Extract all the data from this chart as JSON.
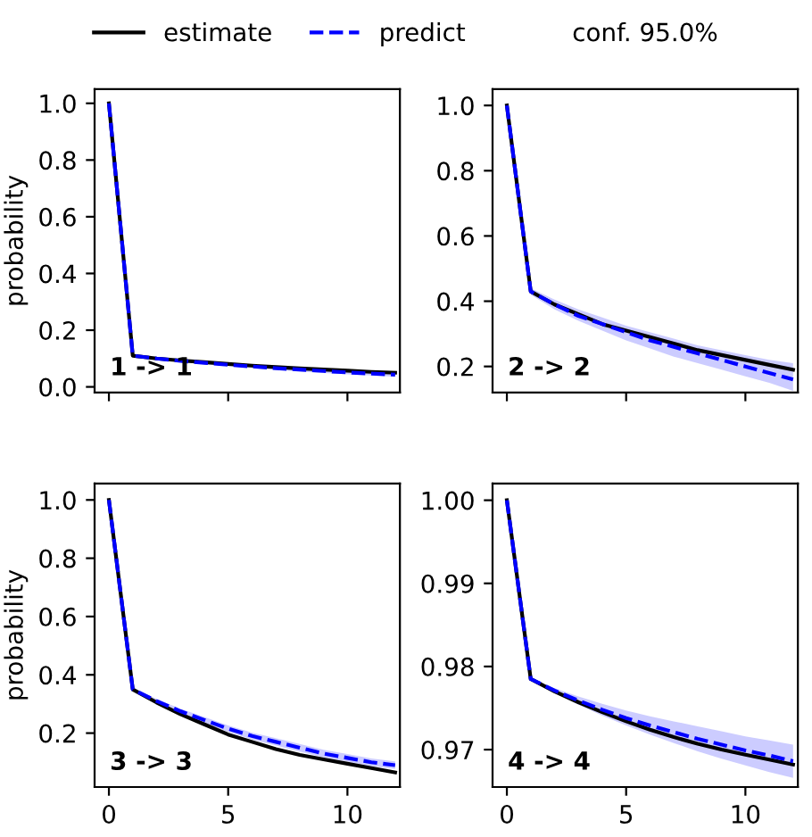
{
  "chart_data": [
    {
      "type": "line",
      "x": [
        0,
        1,
        2,
        3,
        4,
        5,
        6,
        7,
        8,
        9,
        10,
        11,
        12
      ],
      "xlim": [
        -0.6,
        12.2
      ],
      "xticks": [
        0,
        5,
        10
      ],
      "ylim": [
        -0.02,
        1.05
      ],
      "yticks": [
        {
          "value": 0.0,
          "label": "0.0"
        },
        0.2,
        0.4,
        0.6,
        0.8,
        {
          "value": 1.0,
          "label": "1.0"
        }
      ],
      "ylabel": "probability",
      "tick_labels": "y",
      "legend": "top",
      "annotations": [
        "1 -> 1",
        "conf. 95.0%"
      ],
      "series": [
        {
          "name": "estimate",
          "color": "#000000",
          "line_style": "solid",
          "values": [
            1.0,
            0.11,
            0.1,
            0.093,
            0.087,
            0.081,
            0.075,
            0.07,
            0.065,
            0.061,
            0.057,
            0.053,
            0.05
          ]
        },
        {
          "name": "predict",
          "color": "#0000ff",
          "line_style": "dashed",
          "values": [
            1.0,
            0.11,
            0.1,
            0.092,
            0.085,
            0.078,
            0.072,
            0.066,
            0.061,
            0.056,
            0.051,
            0.047,
            0.043
          ],
          "lower": [
            1.0,
            0.108,
            0.097,
            0.088,
            0.08,
            0.073,
            0.066,
            0.06,
            0.054,
            0.049,
            0.044,
            0.04,
            0.036
          ],
          "upper": [
            1.0,
            0.112,
            0.103,
            0.096,
            0.09,
            0.083,
            0.078,
            0.072,
            0.068,
            0.063,
            0.058,
            0.054,
            0.05
          ]
        }
      ]
    },
    {
      "type": "line",
      "x": [
        0,
        1,
        2,
        3,
        4,
        5,
        6,
        7,
        8,
        9,
        10,
        11,
        12
      ],
      "xlim": [
        -0.6,
        12.2
      ],
      "xticks": [
        0,
        5,
        10
      ],
      "ylim": [
        0.12,
        1.05
      ],
      "yticks": [
        0.2,
        0.4,
        0.6,
        0.8,
        {
          "value": 1.0,
          "label": "1.0"
        }
      ],
      "tick_labels": "y",
      "annotations": [
        "2 -> 2"
      ],
      "series": [
        {
          "color": "#000000",
          "line_style": "solid",
          "values": [
            1.0,
            0.43,
            0.39,
            0.36,
            0.33,
            0.31,
            0.29,
            0.27,
            0.25,
            0.235,
            0.22,
            0.205,
            0.19
          ]
        },
        {
          "color": "#0000ff",
          "line_style": "dashed",
          "values": [
            1.0,
            0.43,
            0.39,
            0.355,
            0.33,
            0.305,
            0.28,
            0.26,
            0.24,
            0.22,
            0.2,
            0.18,
            0.16
          ],
          "lower": [
            1.0,
            0.42,
            0.375,
            0.34,
            0.31,
            0.28,
            0.255,
            0.23,
            0.21,
            0.19,
            0.17,
            0.15,
            0.125
          ],
          "upper": [
            1.0,
            0.44,
            0.405,
            0.375,
            0.35,
            0.325,
            0.305,
            0.285,
            0.265,
            0.25,
            0.235,
            0.22,
            0.21
          ]
        }
      ]
    },
    {
      "type": "line",
      "x": [
        0,
        1,
        2,
        3,
        4,
        5,
        6,
        7,
        8,
        9,
        10,
        11,
        12
      ],
      "xlim": [
        -0.6,
        12.2
      ],
      "xticks": [
        0,
        5,
        10
      ],
      "ylim": [
        0.015,
        1.056
      ],
      "yticks": [
        0.2,
        0.4,
        0.6,
        0.8,
        {
          "value": 1.0,
          "label": "1.0"
        }
      ],
      "ylabel": "probability",
      "annotations": [
        "3 -> 3"
      ],
      "series": [
        {
          "color": "#000000",
          "line_style": "solid",
          "values": [
            1.0,
            0.35,
            0.305,
            0.265,
            0.23,
            0.195,
            0.17,
            0.145,
            0.125,
            0.11,
            0.095,
            0.08,
            0.065
          ]
        },
        {
          "color": "#0000ff",
          "line_style": "dashed",
          "values": [
            1.0,
            0.35,
            0.31,
            0.275,
            0.245,
            0.215,
            0.19,
            0.17,
            0.15,
            0.13,
            0.115,
            0.1,
            0.09
          ],
          "lower": [
            1.0,
            0.345,
            0.303,
            0.266,
            0.235,
            0.204,
            0.178,
            0.157,
            0.137,
            0.117,
            0.102,
            0.087,
            0.077
          ],
          "upper": [
            1.0,
            0.355,
            0.317,
            0.284,
            0.255,
            0.226,
            0.202,
            0.183,
            0.163,
            0.143,
            0.128,
            0.113,
            0.103
          ]
        }
      ]
    },
    {
      "type": "line",
      "x": [
        0,
        1,
        2,
        3,
        4,
        5,
        6,
        7,
        8,
        9,
        10,
        11,
        12
      ],
      "xlim": [
        -0.6,
        12.2
      ],
      "xticks": [
        0,
        5,
        10
      ],
      "ylim": [
        0.9655,
        1.002
      ],
      "yticks": [
        {
          "value": 0.97,
          "label": "0.97"
        },
        {
          "value": 0.98,
          "label": "0.98"
        },
        {
          "value": 0.99,
          "label": "0.99"
        },
        {
          "value": 1.0,
          "label": "1.00"
        }
      ],
      "annotations": [
        "4 -> 4"
      ],
      "series": [
        {
          "color": "#000000",
          "line_style": "solid",
          "values": [
            1.0,
            0.9785,
            0.977,
            0.9757,
            0.9745,
            0.9734,
            0.9724,
            0.9715,
            0.9707,
            0.97,
            0.9694,
            0.9688,
            0.9682
          ]
        },
        {
          "color": "#0000ff",
          "line_style": "dashed",
          "values": [
            1.0,
            0.9785,
            0.9771,
            0.9759,
            0.9748,
            0.9738,
            0.9729,
            0.9721,
            0.9713,
            0.9706,
            0.9699,
            0.9693,
            0.9686
          ],
          "lower": [
            1.0,
            0.9784,
            0.9768,
            0.9754,
            0.9741,
            0.9729,
            0.9718,
            0.9708,
            0.9698,
            0.9689,
            0.9681,
            0.9673,
            0.9666
          ],
          "upper": [
            1.0,
            0.9786,
            0.9774,
            0.9764,
            0.9755,
            0.9747,
            0.974,
            0.9734,
            0.9728,
            0.9722,
            0.9716,
            0.9711,
            0.9706
          ]
        }
      ]
    }
  ]
}
